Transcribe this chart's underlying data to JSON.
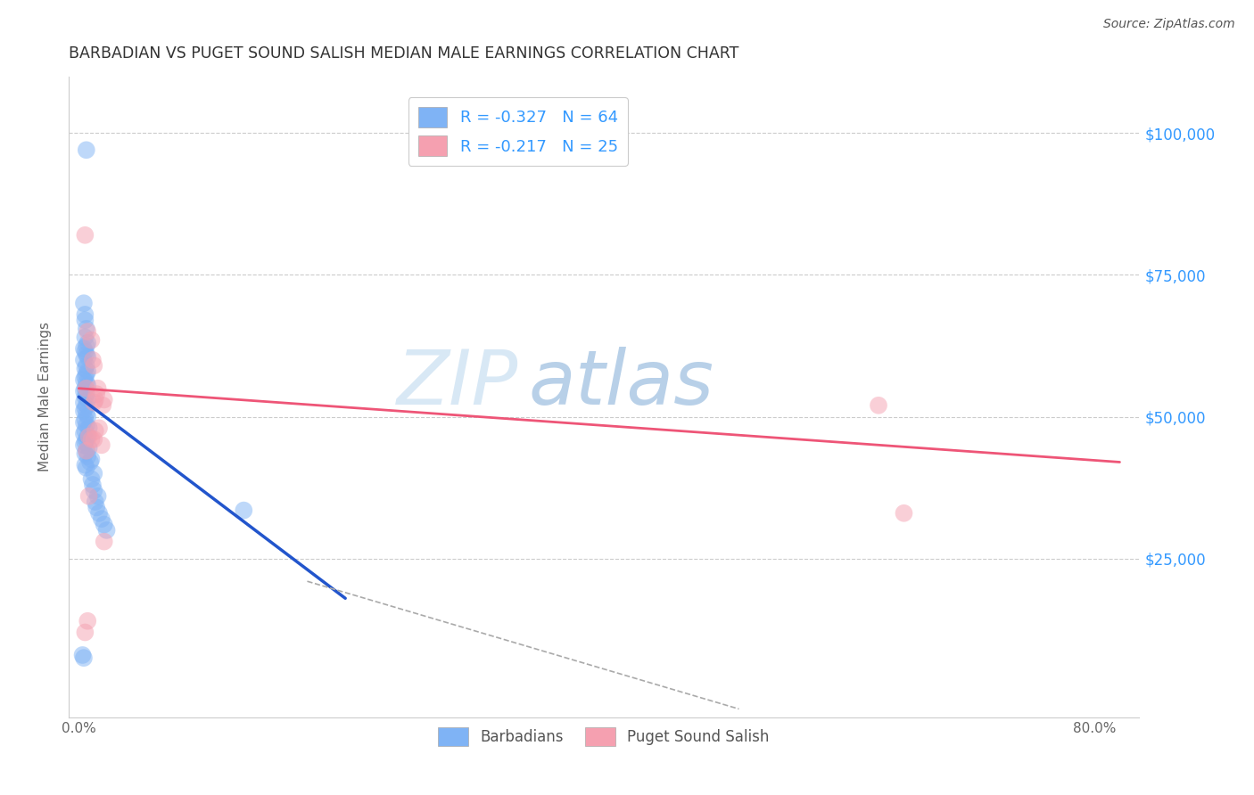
{
  "title": "BARBADIAN VS PUGET SOUND SALISH MEDIAN MALE EARNINGS CORRELATION CHART",
  "source": "Source: ZipAtlas.com",
  "xlabel_ticks": [
    0.0,
    0.1,
    0.2,
    0.3,
    0.4,
    0.5,
    0.6,
    0.7,
    0.8
  ],
  "xlabel_labels": [
    "0.0%",
    "",
    "",
    "",
    "",
    "",
    "",
    "",
    "80.0%"
  ],
  "ylabel_ticks": [
    0,
    25000,
    50000,
    75000,
    100000
  ],
  "ylabel_right_labels": [
    "",
    "$25,000",
    "$50,000",
    "$75,000",
    "$100,000"
  ],
  "ylabel_label": "Median Male Earnings",
  "xlim": [
    -0.008,
    0.835
  ],
  "ylim": [
    -3000,
    110000
  ],
  "legend_r1": "R = -0.327",
  "legend_n1": "N = 64",
  "legend_r2": "R = -0.217",
  "legend_n2": "N = 25",
  "color_blue": "#7fb3f5",
  "color_pink": "#f5a0b0",
  "color_blue_line": "#2255cc",
  "color_pink_line": "#ee5577",
  "color_dashed": "#aaaaaa",
  "color_grid": "#cccccc",
  "color_title": "#333333",
  "color_right_axis": "#3399ff",
  "watermark_zip": "ZIP",
  "watermark_atlas": "atlas",
  "watermark_color_zip": "#d8e8f5",
  "watermark_color_atlas": "#b8d0e8",
  "blue_points": [
    [
      0.006,
      97000
    ],
    [
      0.004,
      70000
    ],
    [
      0.005,
      68000
    ],
    [
      0.005,
      67000
    ],
    [
      0.006,
      65500
    ],
    [
      0.005,
      64000
    ],
    [
      0.007,
      63000
    ],
    [
      0.006,
      62500
    ],
    [
      0.004,
      62000
    ],
    [
      0.005,
      61500
    ],
    [
      0.006,
      61000
    ],
    [
      0.007,
      60500
    ],
    [
      0.004,
      60000
    ],
    [
      0.006,
      59000
    ],
    [
      0.005,
      58500
    ],
    [
      0.007,
      58000
    ],
    [
      0.006,
      57500
    ],
    [
      0.005,
      57000
    ],
    [
      0.004,
      56500
    ],
    [
      0.006,
      56000
    ],
    [
      0.007,
      55500
    ],
    [
      0.005,
      55000
    ],
    [
      0.004,
      54500
    ],
    [
      0.006,
      54000
    ],
    [
      0.005,
      53500
    ],
    [
      0.007,
      53000
    ],
    [
      0.004,
      52500
    ],
    [
      0.006,
      52000
    ],
    [
      0.005,
      51500
    ],
    [
      0.004,
      51000
    ],
    [
      0.006,
      50500
    ],
    [
      0.007,
      50000
    ],
    [
      0.005,
      49500
    ],
    [
      0.004,
      49000
    ],
    [
      0.006,
      48500
    ],
    [
      0.008,
      48000
    ],
    [
      0.005,
      47500
    ],
    [
      0.004,
      47000
    ],
    [
      0.007,
      46500
    ],
    [
      0.006,
      46000
    ],
    [
      0.005,
      45500
    ],
    [
      0.004,
      45000
    ],
    [
      0.008,
      44500
    ],
    [
      0.006,
      44000
    ],
    [
      0.005,
      43500
    ],
    [
      0.007,
      43000
    ],
    [
      0.01,
      42500
    ],
    [
      0.009,
      42000
    ],
    [
      0.005,
      41500
    ],
    [
      0.006,
      41000
    ],
    [
      0.012,
      40000
    ],
    [
      0.01,
      39000
    ],
    [
      0.011,
      38000
    ],
    [
      0.012,
      37000
    ],
    [
      0.015,
      36000
    ],
    [
      0.013,
      35000
    ],
    [
      0.014,
      34000
    ],
    [
      0.016,
      33000
    ],
    [
      0.018,
      32000
    ],
    [
      0.02,
      31000
    ],
    [
      0.022,
      30000
    ],
    [
      0.13,
      33500
    ],
    [
      0.003,
      8000
    ],
    [
      0.004,
      7500
    ]
  ],
  "pink_points": [
    [
      0.005,
      82000
    ],
    [
      0.007,
      65000
    ],
    [
      0.01,
      63500
    ],
    [
      0.011,
      60000
    ],
    [
      0.012,
      59000
    ],
    [
      0.006,
      55000
    ],
    [
      0.013,
      53000
    ],
    [
      0.012,
      52500
    ],
    [
      0.015,
      55000
    ],
    [
      0.014,
      54000
    ],
    [
      0.016,
      48000
    ],
    [
      0.013,
      47500
    ],
    [
      0.008,
      46500
    ],
    [
      0.012,
      46000
    ],
    [
      0.018,
      45000
    ],
    [
      0.006,
      44000
    ],
    [
      0.02,
      53000
    ],
    [
      0.019,
      52000
    ],
    [
      0.01,
      46000
    ],
    [
      0.008,
      36000
    ],
    [
      0.63,
      52000
    ],
    [
      0.65,
      33000
    ],
    [
      0.02,
      28000
    ],
    [
      0.007,
      14000
    ],
    [
      0.005,
      12000
    ]
  ],
  "blue_line_x": [
    0.0,
    0.21
  ],
  "blue_line_y": [
    53500,
    18000
  ],
  "pink_line_x": [
    0.0,
    0.82
  ],
  "pink_line_y": [
    55000,
    42000
  ],
  "dashed_line_x": [
    0.18,
    0.52
  ],
  "dashed_line_y": [
    21000,
    -1500
  ]
}
